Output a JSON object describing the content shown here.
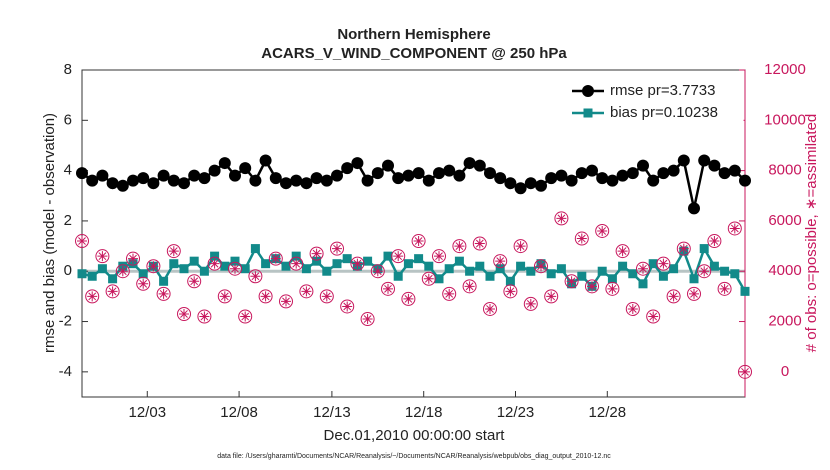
{
  "chart_data": {
    "type": "line",
    "title": [
      "Northern Hemisphere",
      "ACARS_V_WIND_COMPONENT @ 250 hPa"
    ],
    "xlabel": "Dec.01,2010 00:00:00 start",
    "ylabel": "rmse and bias (model - observation)",
    "y2label": "# of obs: o=possible, ∗=assimilated",
    "footnote": "data file: /Users/gharamti/Documents/NCAR/Reanalysis/~/Documents/NCAR/Reanalysis/webpub/obs_diag_output_2010-12.nc",
    "legend": "upper right",
    "xlim": [
      0,
      65
    ],
    "xticks": [
      {
        "value": 6.4,
        "label": "12/03"
      },
      {
        "value": 15.4,
        "label": "12/08"
      },
      {
        "value": 24.5,
        "label": "12/13"
      },
      {
        "value": 33.5,
        "label": "12/18"
      },
      {
        "value": 42.5,
        "label": "12/23"
      },
      {
        "value": 51.5,
        "label": "12/28"
      }
    ],
    "ylim": [
      -5,
      8
    ],
    "yticks": [
      -4,
      -2,
      0,
      2,
      4,
      6,
      8
    ],
    "y2lim": [
      -1000,
      12000
    ],
    "y2ticks": [
      0,
      2000,
      4000,
      6000,
      8000,
      10000,
      12000
    ],
    "x": [
      0,
      1,
      2,
      3,
      4,
      5,
      6,
      7,
      8,
      9,
      10,
      11,
      12,
      13,
      14,
      15,
      16,
      17,
      18,
      19,
      20,
      21,
      22,
      23,
      24,
      25,
      26,
      27,
      28,
      29,
      30,
      31,
      32,
      33,
      34,
      35,
      36,
      37,
      38,
      39,
      40,
      41,
      42,
      43,
      44,
      45,
      46,
      47,
      48,
      49,
      50,
      51,
      52,
      53,
      54,
      55,
      56,
      57,
      58,
      59,
      60,
      61,
      62,
      63,
      64,
      65
    ],
    "series": [
      {
        "name": "rmse pr=3.7733",
        "color": "#000000",
        "marker": "circle",
        "values": [
          3.9,
          3.6,
          3.8,
          3.5,
          3.4,
          3.6,
          3.7,
          3.5,
          3.8,
          3.6,
          3.5,
          3.8,
          3.7,
          4.0,
          4.3,
          3.8,
          4.1,
          3.6,
          4.4,
          3.7,
          3.5,
          3.6,
          3.5,
          3.7,
          3.6,
          3.8,
          4.1,
          4.3,
          3.6,
          3.9,
          4.2,
          3.7,
          3.8,
          3.9,
          3.6,
          3.9,
          4.0,
          3.8,
          4.3,
          4.2,
          3.9,
          3.7,
          3.5,
          3.3,
          3.5,
          3.4,
          3.7,
          3.8,
          3.6,
          3.9,
          4.0,
          3.7,
          3.6,
          3.8,
          3.9,
          4.2,
          3.6,
          3.9,
          4.0,
          4.4,
          2.5,
          4.4,
          4.2,
          3.9,
          4.0,
          3.6
        ]
      },
      {
        "name": "bias pr=0.10238",
        "color": "#128a8a",
        "marker": "square",
        "values": [
          -0.1,
          -0.2,
          0.1,
          -0.3,
          0.2,
          0.3,
          -0.1,
          0.2,
          -0.4,
          0.3,
          0.1,
          0.4,
          0.0,
          0.6,
          0.2,
          0.4,
          0.1,
          0.9,
          0.3,
          0.5,
          0.2,
          0.6,
          0.1,
          0.4,
          0.0,
          0.3,
          0.5,
          0.2,
          0.4,
          0.1,
          0.6,
          -0.2,
          0.3,
          0.5,
          0.2,
          -0.3,
          0.1,
          0.4,
          0.0,
          0.2,
          -0.2,
          0.1,
          -0.4,
          0.2,
          0.0,
          0.3,
          -0.1,
          0.1,
          -0.5,
          -0.2,
          -0.6,
          0.0,
          -0.3,
          0.2,
          -0.1,
          -0.5,
          0.3,
          -0.2,
          0.1,
          0.8,
          -0.3,
          0.9,
          0.2,
          0.0,
          -0.1,
          -0.8
        ]
      },
      {
        "color": "#c8175d",
        "marker": "open-circle",
        "axis": "y2",
        "values": [
          5200,
          3000,
          4600,
          3200,
          4000,
          4500,
          3500,
          4200,
          3100,
          4800,
          2300,
          3600,
          2200,
          4300,
          3000,
          4100,
          2200,
          3800,
          3000,
          4500,
          2800,
          4300,
          3200,
          4700,
          3000,
          4900,
          2600,
          4300,
          2100,
          4000,
          3300,
          4600,
          2900,
          5200,
          3700,
          4600,
          3100,
          5000,
          3400,
          5100,
          2500,
          4400,
          3200,
          5000,
          2700,
          4200,
          3000,
          6100,
          3600,
          5300,
          3400,
          5600,
          3300,
          4800,
          2500,
          4100,
          2200,
          4300,
          3000,
          4900,
          3100,
          4000,
          5200,
          3300,
          5700,
          0
        ]
      },
      {
        "color": "#c8175d",
        "marker": "asterisk",
        "axis": "y2",
        "values": [
          5200,
          3000,
          4600,
          3200,
          4000,
          4500,
          3500,
          4200,
          3100,
          4800,
          2300,
          3600,
          2200,
          4300,
          3000,
          4100,
          2200,
          3800,
          3000,
          4500,
          2800,
          4300,
          3200,
          4700,
          3000,
          4900,
          2600,
          4300,
          2100,
          4000,
          3300,
          4600,
          2900,
          5200,
          3700,
          4600,
          3100,
          5000,
          3400,
          5100,
          2500,
          4400,
          3200,
          5000,
          2700,
          4200,
          3000,
          6100,
          3600,
          5300,
          3400,
          5600,
          3300,
          4800,
          2500,
          4100,
          2200,
          4300,
          3000,
          4900,
          3100,
          4000,
          5200,
          3300,
          5700,
          0
        ]
      }
    ]
  }
}
